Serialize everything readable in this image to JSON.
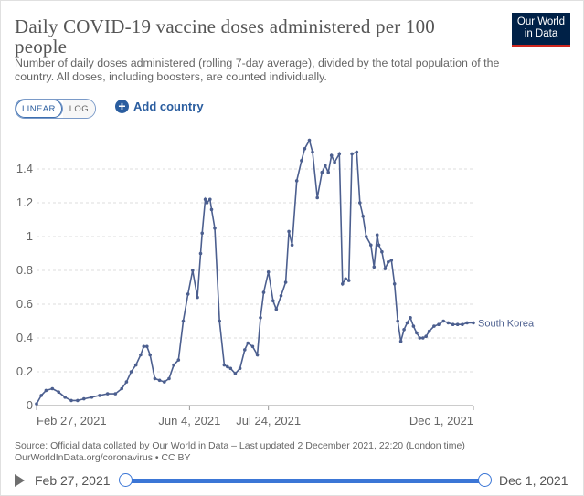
{
  "title": "Daily COVID-19 vaccine doses administered per 100 people",
  "subtitle": "Number of daily doses administered (rolling 7-day average), divided by the total population of the country. All doses, including boosters, are counted individually.",
  "logo": {
    "line1": "Our World",
    "line2": "in Data"
  },
  "scale_toggle": {
    "linear": "LINEAR",
    "log": "LOG",
    "selected": "LINEAR"
  },
  "add_country": "Add country",
  "source": "Source: Official data collated by Our World in Data – Last updated 2 December 2021, 22:20 (London time)\nOurWorldInData.org/coronavirus • CC BY",
  "timeline": {
    "start": "Feb 27, 2021",
    "end": "Dec 1, 2021"
  },
  "colors": {
    "series": "#4c5f8f",
    "accent": "#3b76d6",
    "brand": "#002147"
  },
  "chart_data": {
    "type": "line",
    "y_ticks": [
      "0",
      "0.2",
      "0.4",
      "0.6",
      "0.8",
      "1",
      "1.2",
      "1.4"
    ],
    "x_ticks": [
      "Feb 27, 2021",
      "Jun 4, 2021",
      "Jul 24, 2021",
      "Dec 1, 2021"
    ],
    "ylim": [
      0,
      1.55
    ],
    "grid": true,
    "series": [
      {
        "name": "South Korea",
        "x": [
          "2021-02-27",
          "2021-03-02",
          "2021-03-05",
          "2021-03-09",
          "2021-03-13",
          "2021-03-17",
          "2021-03-21",
          "2021-03-25",
          "2021-03-29",
          "2021-04-03",
          "2021-04-08",
          "2021-04-13",
          "2021-04-18",
          "2021-04-22",
          "2021-04-25",
          "2021-04-28",
          "2021-05-01",
          "2021-05-04",
          "2021-05-06",
          "2021-05-08",
          "2021-05-10",
          "2021-05-13",
          "2021-05-16",
          "2021-05-19",
          "2021-05-22",
          "2021-05-25",
          "2021-05-28",
          "2021-05-31",
          "2021-06-03",
          "2021-06-06",
          "2021-06-09",
          "2021-06-11",
          "2021-06-12",
          "2021-06-14",
          "2021-06-15",
          "2021-06-17",
          "2021-06-18",
          "2021-06-20",
          "2021-06-23",
          "2021-06-26",
          "2021-06-28",
          "2021-06-30",
          "2021-07-03",
          "2021-07-06",
          "2021-07-09",
          "2021-07-11",
          "2021-07-14",
          "2021-07-17",
          "2021-07-19",
          "2021-07-21",
          "2021-07-24",
          "2021-07-27",
          "2021-07-29",
          "2021-08-01",
          "2021-08-04",
          "2021-08-06",
          "2021-08-08",
          "2021-08-11",
          "2021-08-14",
          "2021-08-16",
          "2021-08-19",
          "2021-08-21",
          "2021-08-24",
          "2021-08-27",
          "2021-08-29",
          "2021-08-31",
          "2021-09-02",
          "2021-09-04",
          "2021-09-07",
          "2021-09-09",
          "2021-09-11",
          "2021-09-13",
          "2021-09-15",
          "2021-09-18",
          "2021-09-20",
          "2021-09-22",
          "2021-09-24",
          "2021-09-27",
          "2021-09-29",
          "2021-10-01",
          "2021-10-02",
          "2021-10-04",
          "2021-10-06",
          "2021-10-08",
          "2021-10-10",
          "2021-10-12",
          "2021-10-14",
          "2021-10-16",
          "2021-10-18",
          "2021-10-20",
          "2021-10-22",
          "2021-10-24",
          "2021-10-26",
          "2021-10-28",
          "2021-10-30",
          "2021-11-01",
          "2021-11-03",
          "2021-11-06",
          "2021-11-09",
          "2021-11-12",
          "2021-11-15",
          "2021-11-18",
          "2021-11-21",
          "2021-11-24",
          "2021-11-27",
          "2021-12-01"
        ],
        "values": [
          0.01,
          0.06,
          0.09,
          0.1,
          0.08,
          0.05,
          0.03,
          0.03,
          0.04,
          0.05,
          0.06,
          0.07,
          0.07,
          0.1,
          0.14,
          0.2,
          0.24,
          0.3,
          0.35,
          0.35,
          0.3,
          0.16,
          0.15,
          0.14,
          0.16,
          0.24,
          0.27,
          0.5,
          0.66,
          0.8,
          0.64,
          0.9,
          1.02,
          1.22,
          1.2,
          1.22,
          1.16,
          1.05,
          0.5,
          0.24,
          0.23,
          0.22,
          0.19,
          0.22,
          0.33,
          0.37,
          0.35,
          0.3,
          0.52,
          0.67,
          0.79,
          0.62,
          0.57,
          0.65,
          0.73,
          1.03,
          0.95,
          1.33,
          1.45,
          1.52,
          1.57,
          1.5,
          1.23,
          1.38,
          1.42,
          1.38,
          1.48,
          1.44,
          1.49,
          0.72,
          0.75,
          0.74,
          1.49,
          1.5,
          1.2,
          1.12,
          1.0,
          0.95,
          0.82,
          1.01,
          0.95,
          0.91,
          0.81,
          0.85,
          0.86,
          0.72,
          0.5,
          0.38,
          0.45,
          0.49,
          0.52,
          0.47,
          0.43,
          0.4,
          0.4,
          0.41,
          0.44,
          0.47,
          0.48,
          0.5,
          0.49,
          0.48,
          0.48,
          0.48,
          0.49,
          0.49
        ]
      }
    ]
  }
}
